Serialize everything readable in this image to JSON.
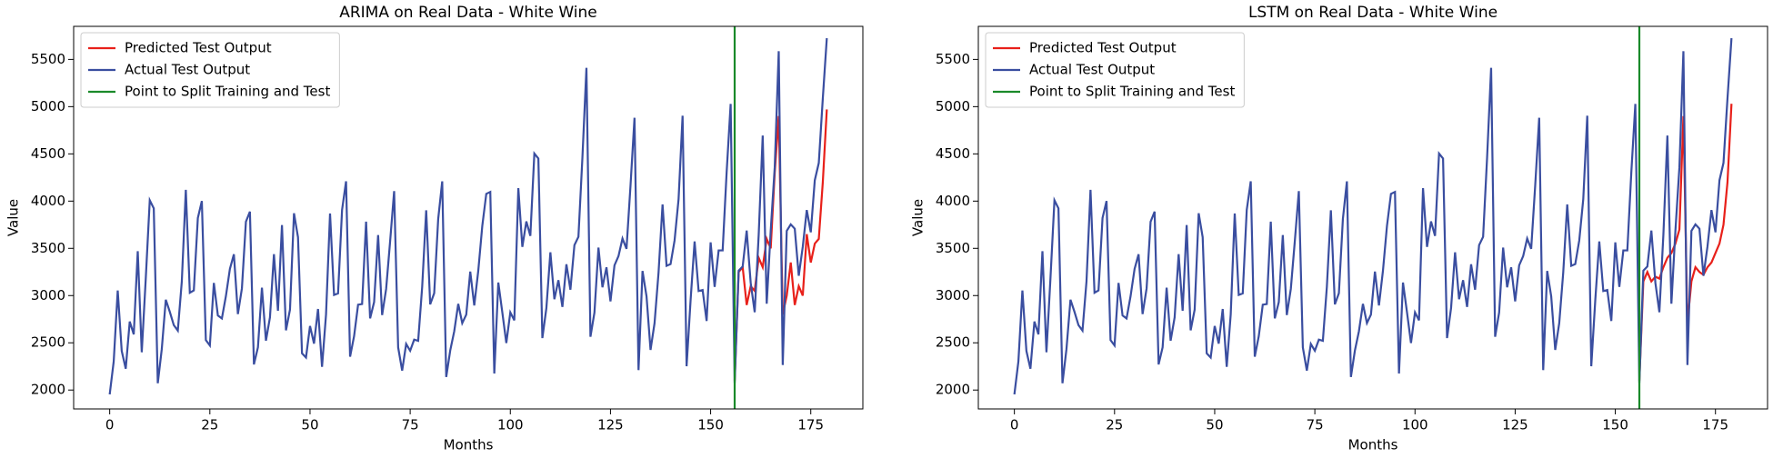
{
  "chart_data": [
    {
      "type": "line",
      "title": "ARIMA on Real Data - White Wine",
      "xlabel": "Months",
      "ylabel": "Value",
      "xlim": [
        -9,
        188
      ],
      "xticks": [
        0,
        25,
        50,
        75,
        100,
        125,
        150,
        175
      ],
      "ylim": [
        1800,
        5850
      ],
      "yticks": [
        2000,
        2500,
        3000,
        3500,
        4000,
        4500,
        5000,
        5500
      ],
      "legend": "upper left",
      "series": [
        {
          "name": "Predicted Test Output",
          "color": "#e8201a",
          "x": [
            156,
            157,
            158,
            159,
            160,
            161,
            162,
            163,
            164,
            165,
            166,
            167,
            168,
            169,
            170,
            171,
            172,
            173,
            174,
            175,
            176,
            177,
            178,
            179
          ],
          "values": [
            2100,
            3250,
            3300,
            2900,
            3100,
            3050,
            3400,
            3300,
            3600,
            3500,
            4300,
            4900,
            2800,
            3000,
            3350,
            2900,
            3100,
            3000,
            3650,
            3350,
            3550,
            3600,
            4200,
            4970
          ]
        },
        {
          "name": "Actual Test Output",
          "color": "#3a4ea0",
          "x": [
            0,
            1,
            2,
            3,
            4,
            5,
            6,
            7,
            8,
            9,
            10,
            11,
            12,
            13,
            14,
            15,
            16,
            17,
            18,
            19,
            20,
            21,
            22,
            23,
            24,
            25,
            26,
            27,
            28,
            29,
            30,
            31,
            32,
            33,
            34,
            35,
            36,
            37,
            38,
            39,
            40,
            41,
            42,
            43,
            44,
            45,
            46,
            47,
            48,
            49,
            50,
            51,
            52,
            53,
            54,
            55,
            56,
            57,
            58,
            59,
            60,
            61,
            62,
            63,
            64,
            65,
            66,
            67,
            68,
            69,
            70,
            71,
            72,
            73,
            74,
            75,
            76,
            77,
            78,
            79,
            80,
            81,
            82,
            83,
            84,
            85,
            86,
            87,
            88,
            89,
            90,
            91,
            92,
            93,
            94,
            95,
            96,
            97,
            98,
            99,
            100,
            101,
            102,
            103,
            104,
            105,
            106,
            107,
            108,
            109,
            110,
            111,
            112,
            113,
            114,
            115,
            116,
            117,
            118,
            119,
            120,
            121,
            122,
            123,
            124,
            125,
            126,
            127,
            128,
            129,
            130,
            131,
            132,
            133,
            134,
            135,
            136,
            137,
            138,
            139,
            140,
            141,
            142,
            143,
            144,
            145,
            146,
            147,
            148,
            149,
            150,
            151,
            152,
            153,
            154,
            155,
            156,
            157,
            158,
            159,
            160,
            161,
            162,
            163,
            164,
            165,
            166,
            167,
            168,
            169,
            170,
            171,
            172,
            173,
            174,
            175,
            176,
            177,
            178,
            179
          ],
          "values": [
            1954,
            2302,
            3054,
            2414,
            2226,
            2725,
            2589,
            3470,
            2400,
            3180,
            4009,
            3924,
            2072,
            2434,
            2956,
            2828,
            2687,
            2629,
            3150,
            4119,
            3030,
            3055,
            3821,
            4001,
            2529,
            2472,
            3134,
            2789,
            2758,
            2993,
            3282,
            3437,
            2804,
            3076,
            3782,
            3889,
            2271,
            2452,
            3084,
            2522,
            2769,
            3438,
            2839,
            3746,
            2632,
            2851,
            3871,
            3618,
            2389,
            2344,
            2678,
            2492,
            2858,
            2246,
            2800,
            3869,
            3007,
            3023,
            3907,
            4209,
            2353,
            2570,
            2903,
            2910,
            3782,
            2759,
            2931,
            3641,
            2794,
            3070,
            3576,
            4106,
            2452,
            2206,
            2488,
            2416,
            2534,
            2521,
            3093,
            3903,
            2907,
            3025,
            3812,
            4209,
            2138,
            2419,
            2622,
            2912,
            2708,
            2798,
            3254,
            2895,
            3263,
            3736,
            4077,
            4097,
            2175,
            3138,
            2823,
            2498,
            2822,
            2738,
            4137,
            3515,
            3785,
            3632,
            4504,
            4451,
            2550,
            2867,
            3458,
            2961,
            3163,
            2880,
            3331,
            3062,
            3534,
            3622,
            4464,
            5411,
            2564,
            2820,
            3508,
            3088,
            3299,
            2939,
            3320,
            3418,
            3604,
            3495,
            4163,
            4882,
            2211,
            3260,
            2992,
            2425,
            2707,
            3244,
            3965,
            3315,
            3333,
            3583,
            4021,
            4904,
            2252,
            2952,
            3573,
            3048,
            3059,
            2731,
            3563,
            3092,
            3478,
            3478,
            4308,
            5029,
            2075,
            3264,
            3308,
            3688,
            3136,
            2824,
            3644,
            4694,
            2914,
            3686,
            4358,
            5587,
            2265,
            3685,
            3754,
            3708,
            3210,
            3517,
            3905,
            3670,
            4221,
            4404,
            5086,
            5725
          ]
        }
      ],
      "vlines": [
        {
          "name": "Point to Split Training and Test",
          "color": "#1a8a2a",
          "x": 156
        }
      ]
    },
    {
      "type": "line",
      "title": "LSTM on Real Data - White Wine",
      "xlabel": "Months",
      "ylabel": "Value",
      "xlim": [
        -9,
        188
      ],
      "xticks": [
        0,
        25,
        50,
        75,
        100,
        125,
        150,
        175
      ],
      "ylim": [
        1800,
        5850
      ],
      "yticks": [
        2000,
        2500,
        3000,
        3500,
        4000,
        4500,
        5000,
        5500
      ],
      "legend": "upper left",
      "series": [
        {
          "name": "Predicted Test Output",
          "color": "#e8201a",
          "x": [
            156,
            157,
            158,
            159,
            160,
            161,
            162,
            163,
            164,
            165,
            166,
            167,
            168,
            169,
            170,
            171,
            172,
            173,
            174,
            175,
            176,
            177,
            178,
            179
          ],
          "values": [
            2100,
            3150,
            3250,
            3150,
            3200,
            3180,
            3300,
            3400,
            3450,
            3550,
            3700,
            4900,
            2700,
            3150,
            3300,
            3250,
            3220,
            3300,
            3350,
            3450,
            3550,
            3750,
            4200,
            5030
          ]
        },
        {
          "name": "Actual Test Output",
          "color": "#3a4ea0",
          "x": [
            0,
            1,
            2,
            3,
            4,
            5,
            6,
            7,
            8,
            9,
            10,
            11,
            12,
            13,
            14,
            15,
            16,
            17,
            18,
            19,
            20,
            21,
            22,
            23,
            24,
            25,
            26,
            27,
            28,
            29,
            30,
            31,
            32,
            33,
            34,
            35,
            36,
            37,
            38,
            39,
            40,
            41,
            42,
            43,
            44,
            45,
            46,
            47,
            48,
            49,
            50,
            51,
            52,
            53,
            54,
            55,
            56,
            57,
            58,
            59,
            60,
            61,
            62,
            63,
            64,
            65,
            66,
            67,
            68,
            69,
            70,
            71,
            72,
            73,
            74,
            75,
            76,
            77,
            78,
            79,
            80,
            81,
            82,
            83,
            84,
            85,
            86,
            87,
            88,
            89,
            90,
            91,
            92,
            93,
            94,
            95,
            96,
            97,
            98,
            99,
            100,
            101,
            102,
            103,
            104,
            105,
            106,
            107,
            108,
            109,
            110,
            111,
            112,
            113,
            114,
            115,
            116,
            117,
            118,
            119,
            120,
            121,
            122,
            123,
            124,
            125,
            126,
            127,
            128,
            129,
            130,
            131,
            132,
            133,
            134,
            135,
            136,
            137,
            138,
            139,
            140,
            141,
            142,
            143,
            144,
            145,
            146,
            147,
            148,
            149,
            150,
            151,
            152,
            153,
            154,
            155,
            156,
            157,
            158,
            159,
            160,
            161,
            162,
            163,
            164,
            165,
            166,
            167,
            168,
            169,
            170,
            171,
            172,
            173,
            174,
            175,
            176,
            177,
            178,
            179
          ],
          "values": [
            1954,
            2302,
            3054,
            2414,
            2226,
            2725,
            2589,
            3470,
            2400,
            3180,
            4009,
            3924,
            2072,
            2434,
            2956,
            2828,
            2687,
            2629,
            3150,
            4119,
            3030,
            3055,
            3821,
            4001,
            2529,
            2472,
            3134,
            2789,
            2758,
            2993,
            3282,
            3437,
            2804,
            3076,
            3782,
            3889,
            2271,
            2452,
            3084,
            2522,
            2769,
            3438,
            2839,
            3746,
            2632,
            2851,
            3871,
            3618,
            2389,
            2344,
            2678,
            2492,
            2858,
            2246,
            2800,
            3869,
            3007,
            3023,
            3907,
            4209,
            2353,
            2570,
            2903,
            2910,
            3782,
            2759,
            2931,
            3641,
            2794,
            3070,
            3576,
            4106,
            2452,
            2206,
            2488,
            2416,
            2534,
            2521,
            3093,
            3903,
            2907,
            3025,
            3812,
            4209,
            2138,
            2419,
            2622,
            2912,
            2708,
            2798,
            3254,
            2895,
            3263,
            3736,
            4077,
            4097,
            2175,
            3138,
            2823,
            2498,
            2822,
            2738,
            4137,
            3515,
            3785,
            3632,
            4504,
            4451,
            2550,
            2867,
            3458,
            2961,
            3163,
            2880,
            3331,
            3062,
            3534,
            3622,
            4464,
            5411,
            2564,
            2820,
            3508,
            3088,
            3299,
            2939,
            3320,
            3418,
            3604,
            3495,
            4163,
            4882,
            2211,
            3260,
            2992,
            2425,
            2707,
            3244,
            3965,
            3315,
            3333,
            3583,
            4021,
            4904,
            2252,
            2952,
            3573,
            3048,
            3059,
            2731,
            3563,
            3092,
            3478,
            3478,
            4308,
            5029,
            2075,
            3264,
            3308,
            3688,
            3136,
            2824,
            3644,
            4694,
            2914,
            3686,
            4358,
            5587,
            2265,
            3685,
            3754,
            3708,
            3210,
            3517,
            3905,
            3670,
            4221,
            4404,
            5086,
            5725
          ]
        }
      ],
      "vlines": [
        {
          "name": "Point to Split Training and Test",
          "color": "#1a8a2a",
          "x": 156
        }
      ]
    }
  ]
}
